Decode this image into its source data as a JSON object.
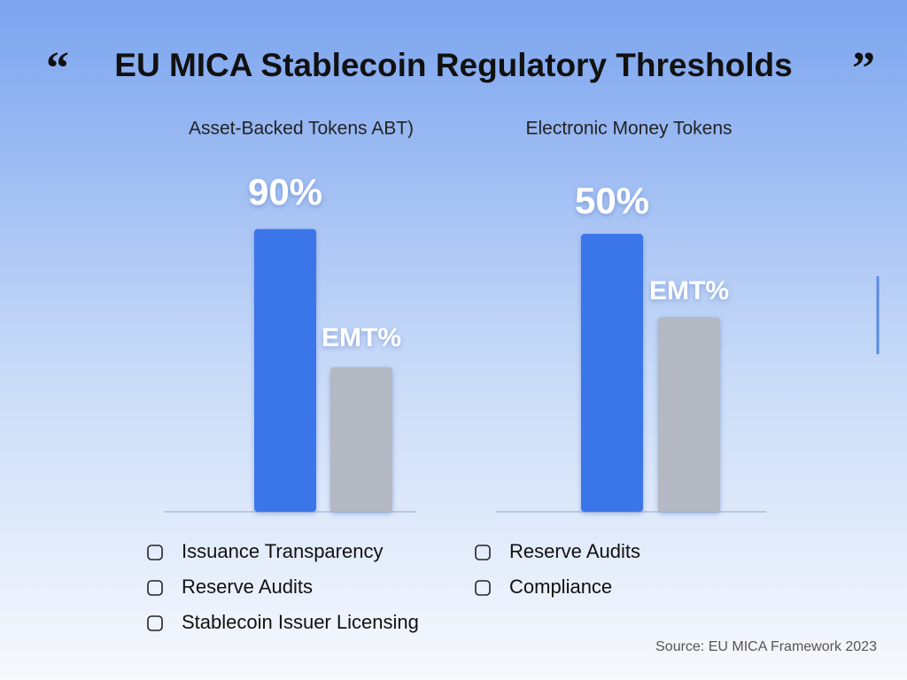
{
  "title": "EU MICA Stablecoin Regulatory Thresholds",
  "chart_data": [
    {
      "type": "bar",
      "title": "Asset-Backed Tokens ABT)",
      "ylim": [
        0,
        115
      ],
      "bars": [
        {
          "label": "90%",
          "value": 90,
          "color": "#3a74ea"
        },
        {
          "label": "EMT%",
          "value": 46,
          "color": "#b4b8c2"
        }
      ],
      "features": [
        "Issuance Transparency",
        "Reserve Audits",
        "Stablecoin Issuer Licensing"
      ]
    },
    {
      "type": "bar",
      "title": "Electronic Money Tokens",
      "ylim": [
        0,
        65
      ],
      "bars": [
        {
          "label": "50%",
          "value": 50,
          "color": "#3a74ea"
        },
        {
          "label": "EMT%",
          "value": 35,
          "color": "#b4b8c2"
        }
      ],
      "features": [
        "Reserve Audits",
        "Compliance"
      ]
    }
  ],
  "source": "Source: EU MICA Framework 2023"
}
